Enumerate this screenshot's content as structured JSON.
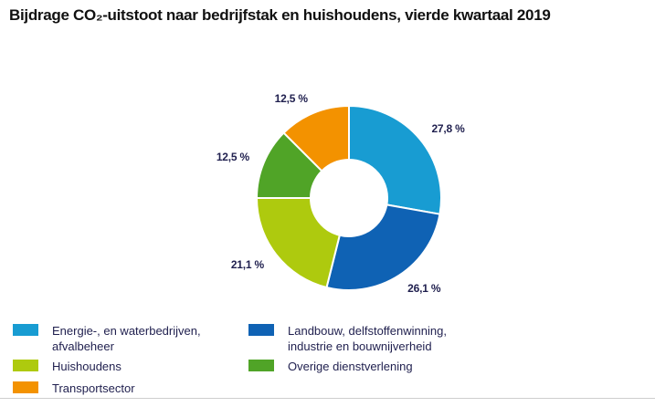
{
  "header": {
    "title": "Bijdrage CO₂-uitstoot naar bedrijfstak en huishoudens, vierde kwartaal 2019"
  },
  "chart_data": {
    "type": "pie",
    "subtype": "donut",
    "title": "Bijdrage CO₂-uitstoot naar bedrijfstak en huishoudens, vierde kwartaal 2019",
    "unit": "%",
    "start_angle": "top",
    "direction": "clockwise",
    "inner_radius_ratio": 0.42,
    "legend_position": "bottom",
    "labels": [
      "Energie-, en waterbedrijven, afvalbeheer",
      "Landbouw, delfstoffenwinning, industrie en bouwnijverheid",
      "Huishoudens",
      "Overige dienstverlening",
      "Transportsector"
    ],
    "values": [
      27.8,
      26.1,
      21.1,
      12.5,
      12.5
    ],
    "value_labels": [
      "27,8 %",
      "26,1 %",
      "21,1 %",
      "12,5 %",
      "12,5 %"
    ],
    "colors": [
      "#189cd2",
      "#0f62b4",
      "#aeca0e",
      "#50a427",
      "#f39200"
    ]
  },
  "legend": {
    "columns": [
      {
        "items": [
          {
            "label": "Energie-, en waterbedrijven,\nafvalbeheer",
            "color": "#189cd2"
          },
          {
            "label": "Huishoudens",
            "color": "#aeca0e"
          },
          {
            "label": "Transportsector",
            "color": "#f39200"
          }
        ]
      },
      {
        "items": [
          {
            "label": "Landbouw, delfstoffenwinning,\nindustrie en bouwnijverheid",
            "color": "#0f62b4"
          },
          {
            "label": "Overige dienstverlening",
            "color": "#50a427"
          }
        ]
      }
    ]
  },
  "colors": {
    "background": "#ffffff",
    "title_text": "#111111",
    "label_text": "#1f1f4e",
    "divider": "#cecece",
    "slice_stroke": "#ffffff"
  }
}
